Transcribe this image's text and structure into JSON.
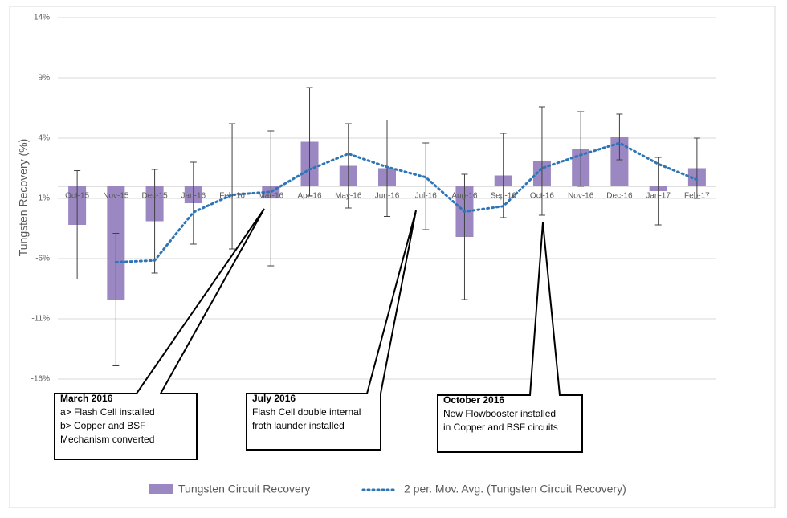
{
  "chart_data": {
    "type": "bar",
    "y_label": "Tungsten Recovery (%)",
    "categories": [
      "Oct-15",
      "Nov-15",
      "Dec-15",
      "Jan-16",
      "Feb-16",
      "Mar-16",
      "Apr-16",
      "May-16",
      "Jun-16",
      "Jul-16",
      "Aug-16",
      "Sep-16",
      "Oct-16",
      "Nov-16",
      "Dec-16",
      "Jan-17",
      "Feb-17"
    ],
    "series": [
      {
        "name": "Tungsten Circuit Recovery",
        "color": "#9b87c1",
        "values": [
          -3.2,
          -9.4,
          -2.9,
          -1.4,
          0,
          -1.0,
          3.7,
          1.7,
          1.5,
          0,
          -4.2,
          0.9,
          2.1,
          3.1,
          4.1,
          -0.4,
          1.5
        ],
        "errors": [
          4.5,
          5.5,
          4.3,
          3.4,
          5.2,
          5.6,
          4.5,
          3.5,
          4.0,
          3.6,
          5.2,
          3.5,
          4.5,
          3.1,
          1.9,
          2.8,
          2.5
        ]
      },
      {
        "name": "2 per. Mov. Avg. (Tungsten Circuit Recovery)",
        "color": "#2e75b6",
        "values": [
          null,
          -6.3,
          -6.15,
          -2.15,
          -0.7,
          -0.45,
          1.4,
          2.7,
          1.6,
          0.75,
          -2.1,
          -1.65,
          1.5,
          2.6,
          3.6,
          1.85,
          0.55
        ]
      }
    ],
    "ylim": [
      -16,
      14
    ],
    "yticks": [
      {
        "value": 14,
        "label": "14%"
      },
      {
        "value": 9,
        "label": "9%"
      },
      {
        "value": 4,
        "label": "4%"
      },
      {
        "value": -1,
        "label": "-1%"
      },
      {
        "value": -6,
        "label": "-6%"
      },
      {
        "value": -11,
        "label": "-11%"
      },
      {
        "value": -16,
        "label": "-16%"
      }
    ],
    "grid": true,
    "annotations": [
      {
        "title": "March 2016",
        "lines": [
          "a> Flash Cell installed",
          "b> Copper and BSF",
          "Mechanism converted"
        ]
      },
      {
        "title": "July 2016",
        "lines": [
          "Flash Cell double internal",
          "froth launder installed"
        ]
      },
      {
        "title": "October 2016",
        "lines": [
          "New Flowbooster installed",
          "in Copper and BSF circuits"
        ]
      }
    ]
  }
}
